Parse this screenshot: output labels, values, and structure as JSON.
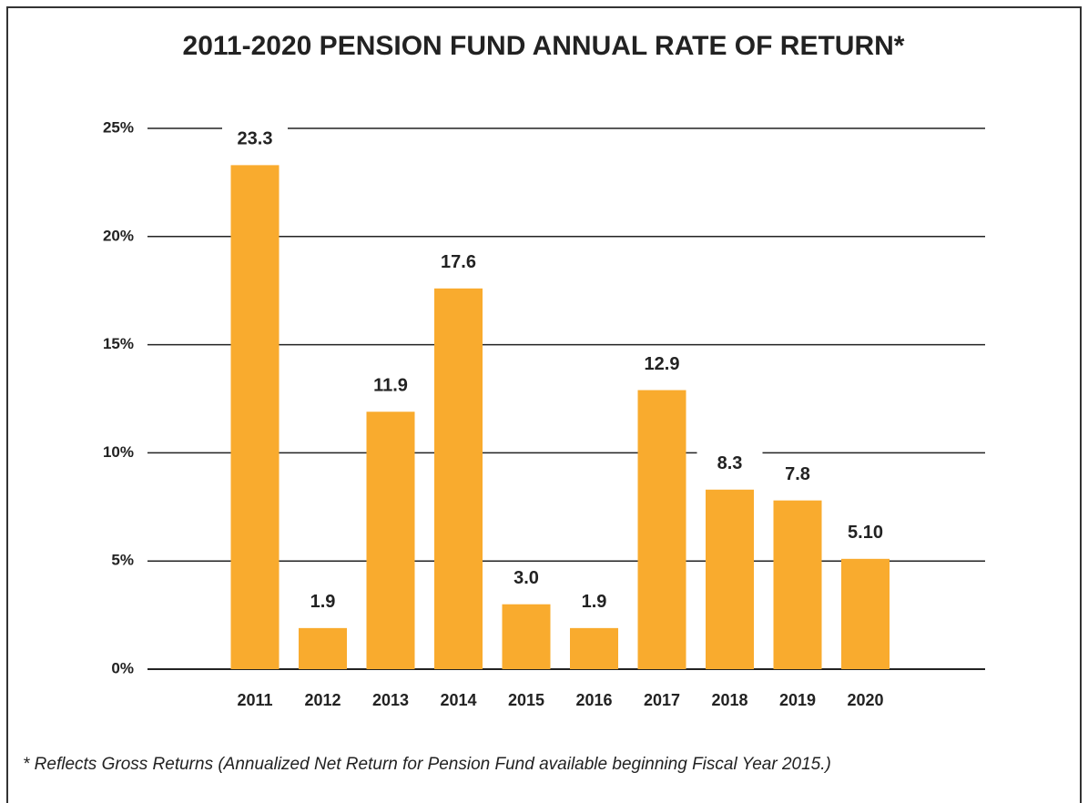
{
  "chart_data": {
    "type": "bar",
    "title": "2011-2020 PENSION FUND ANNUAL RATE OF RETURN*",
    "categories": [
      "2011",
      "2012",
      "2013",
      "2014",
      "2015",
      "2016",
      "2017",
      "2018",
      "2019",
      "2020"
    ],
    "values": [
      23.3,
      1.9,
      11.9,
      17.6,
      3.0,
      1.9,
      12.9,
      8.3,
      7.8,
      5.1
    ],
    "value_labels": [
      "23.3",
      "1.9",
      "11.9",
      "17.6",
      "3.0",
      "1.9",
      "12.9",
      "8.3",
      "7.8",
      "5.10"
    ],
    "color": "#f9ab2e",
    "ylim": [
      0,
      25
    ],
    "yticks": [
      {
        "value": 0,
        "label": "0%"
      },
      {
        "value": 5,
        "label": "5%"
      },
      {
        "value": 10,
        "label": "10%"
      },
      {
        "value": 15,
        "label": "15%"
      },
      {
        "value": 20,
        "label": "20%"
      },
      {
        "value": 25,
        "label": "25%"
      }
    ],
    "grid": true,
    "footnote": "* Reflects Gross Returns (Annualized Net Return for Pension Fund available beginning Fiscal Year 2015.)"
  }
}
